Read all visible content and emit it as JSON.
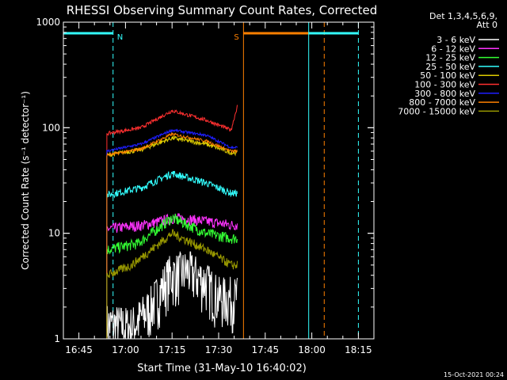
{
  "chart_data": {
    "type": "line",
    "title": "RHESSI Observing Summary Count Rates, Corrected",
    "xlabel": "Start Time (31-May-10 16:40:02)",
    "ylabel": "Corrected Count Rate (s⁻¹ detector⁻¹)",
    "yscale": "log",
    "ylim": [
      1,
      1000
    ],
    "xlim": [
      "16:40",
      "18:20"
    ],
    "x_ticks": [
      "16:45",
      "17:00",
      "17:15",
      "17:30",
      "17:45",
      "18:00",
      "18:15"
    ],
    "y_ticks": [
      "1",
      "10",
      "100",
      "1000"
    ],
    "legend_header": [
      "Det 1,3,4,5,6,9,",
      "Att 0"
    ],
    "legend_position": "right",
    "footer_date": "15-Oct-2021 00:24",
    "data_window": [
      "16:54",
      "17:36"
    ],
    "series": [
      {
        "name": "3 - 6 keV",
        "color": "#ffffff",
        "noise": 0.55,
        "x": [
          "16:54",
          "17:02",
          "17:08",
          "17:14",
          "17:20",
          "17:26",
          "17:30",
          "17:36"
        ],
        "y": [
          1.4,
          1.3,
          2.0,
          4.0,
          4.5,
          3.5,
          2.5,
          2.5
        ]
      },
      {
        "name": "6 - 12 keV",
        "color": "#ff33ff",
        "noise": 0.12,
        "x": [
          "16:54",
          "17:06",
          "17:16",
          "17:26",
          "17:34",
          "17:36"
        ],
        "y": [
          11,
          12,
          14,
          13,
          12,
          12
        ]
      },
      {
        "name": "12 - 25 keV",
        "color": "#33ff33",
        "noise": 0.12,
        "x": [
          "16:54",
          "17:04",
          "17:15",
          "17:26",
          "17:34",
          "17:36"
        ],
        "y": [
          7,
          8,
          14,
          10,
          9,
          9
        ]
      },
      {
        "name": "25 - 50 keV",
        "color": "#33ffff",
        "noise": 0.08,
        "x": [
          "16:54",
          "17:05",
          "17:15",
          "17:26",
          "17:34",
          "17:36"
        ],
        "y": [
          23,
          27,
          37,
          30,
          24,
          24
        ]
      },
      {
        "name": "50 - 100 keV",
        "color": "#ddcc00",
        "noise": 0.05,
        "x": [
          "16:54",
          "17:05",
          "17:15",
          "17:26",
          "17:34",
          "17:36"
        ],
        "y": [
          55,
          62,
          80,
          70,
          58,
          58
        ]
      },
      {
        "name": "100 - 300 keV",
        "color": "#ff3030",
        "noise": 0.04,
        "x": [
          "16:54",
          "17:05",
          "17:15",
          "17:26",
          "17:34",
          "17:36"
        ],
        "y": [
          88,
          100,
          145,
          118,
          95,
          160
        ]
      },
      {
        "name": "300 - 800 keV",
        "color": "#1e1eff",
        "noise": 0.03,
        "x": [
          "16:54",
          "17:05",
          "17:15",
          "17:26",
          "17:34",
          "17:36"
        ],
        "y": [
          60,
          70,
          95,
          85,
          65,
          65
        ]
      },
      {
        "name": "800 - 7000 keV",
        "color": "#ff8000",
        "noise": 0.03,
        "x": [
          "16:54",
          "17:05",
          "17:15",
          "17:26",
          "17:34",
          "17:36"
        ],
        "y": [
          55,
          63,
          87,
          75,
          60,
          60
        ]
      },
      {
        "name": "7000 - 15000 keV",
        "color": "#999900",
        "noise": 0.1,
        "x": [
          "16:54",
          "17:02",
          "17:15",
          "17:26",
          "17:34",
          "17:36"
        ],
        "y": [
          4,
          5,
          10,
          7,
          5,
          5
        ]
      }
    ],
    "markers": [
      {
        "kind": "night",
        "label": "N",
        "color": "#33ffff",
        "x": [
          "16:40",
          "16:56"
        ]
      },
      {
        "kind": "saa",
        "label": "S",
        "color": "#ff8000",
        "x": [
          "17:38",
          "18:04"
        ]
      },
      {
        "kind": "night",
        "label": "",
        "color": "#33ffff",
        "x": [
          "17:59",
          "18:15"
        ]
      }
    ]
  }
}
